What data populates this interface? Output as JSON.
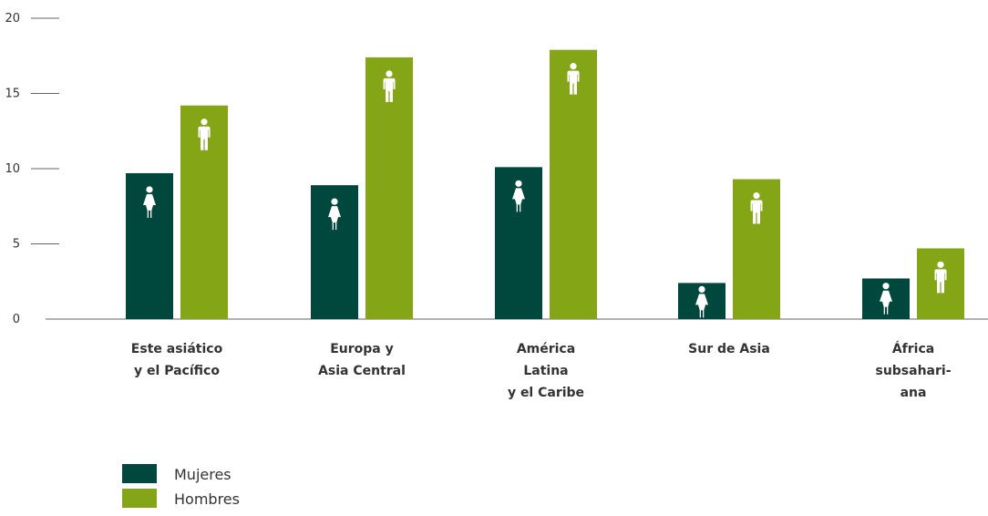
{
  "chart_data": {
    "type": "bar",
    "title": "",
    "xlabel": "",
    "ylabel": "",
    "ylim": [
      0,
      20
    ],
    "yticks": [
      0,
      5,
      10,
      15,
      20
    ],
    "grid": false,
    "legend_position": "bottom-left",
    "categories": [
      [
        "Este asiático",
        "y el Pacífico"
      ],
      [
        "Europa y",
        "Asia Central"
      ],
      [
        "América",
        "Latina",
        "y el Caribe"
      ],
      [
        "Sur de Asia"
      ],
      [
        "África",
        "subsahari-",
        "ana"
      ]
    ],
    "series": [
      {
        "name": "Mujeres",
        "color": "#00473d",
        "icon": "woman-icon",
        "values": [
          9.7,
          8.9,
          10.1,
          2.4,
          2.7
        ]
      },
      {
        "name": "Hombres",
        "color": "#84a516",
        "icon": "man-icon",
        "values": [
          14.2,
          17.4,
          17.9,
          9.3,
          4.7
        ]
      }
    ]
  }
}
